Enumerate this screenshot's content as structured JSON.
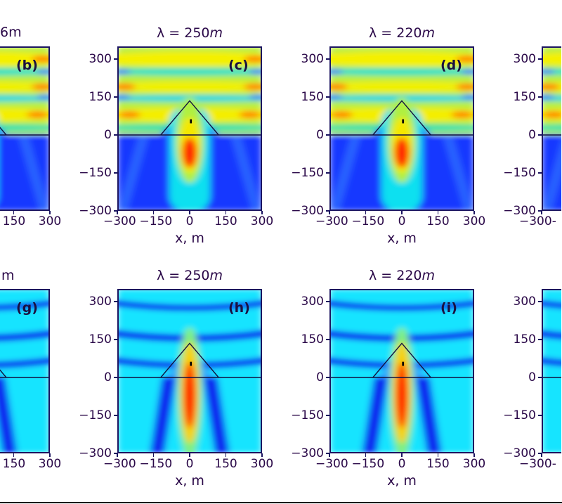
{
  "figure": {
    "title_fragments": [
      {
        "panel": "b",
        "text": "6m"
      },
      {
        "panel": "g",
        "text": "m"
      }
    ],
    "colors": {
      "text": "#2a0848",
      "frame": "#1b1460",
      "deep_blue": "#1838ff",
      "cyan": "#10e8ff",
      "yellow": "#f2f000",
      "red": "#ff1a00"
    }
  },
  "chart_data": [
    {
      "type": "heatmap",
      "panel": "b",
      "row": 0,
      "col": 0,
      "label": "(b)",
      "title": "",
      "xlabel": "",
      "xticks": [
        {
          "v": 150,
          "t": "150"
        },
        {
          "v": 300,
          "t": "300"
        }
      ],
      "yticks": [],
      "xlim": [
        -300,
        300
      ],
      "ylim": [
        -300,
        350
      ],
      "field": "top"
    },
    {
      "type": "heatmap",
      "panel": "c",
      "row": 0,
      "col": 1,
      "label": "(c)",
      "title": "λ = 250",
      "title_unit": "m",
      "xlabel": "x, m",
      "xticks": [
        {
          "v": -300,
          "t": "−300"
        },
        {
          "v": -150,
          "t": "−150"
        },
        {
          "v": 0,
          "t": "0"
        },
        {
          "v": 150,
          "t": "150"
        },
        {
          "v": 300,
          "t": "300"
        }
      ],
      "yticks": [
        {
          "v": 300,
          "t": "300"
        },
        {
          "v": 150,
          "t": "150"
        },
        {
          "v": 0,
          "t": "0"
        },
        {
          "v": -150,
          "t": "−150"
        },
        {
          "v": -300,
          "t": "−300"
        }
      ],
      "xlim": [
        -300,
        300
      ],
      "ylim": [
        -300,
        350
      ],
      "field": "top"
    },
    {
      "type": "heatmap",
      "panel": "d",
      "row": 0,
      "col": 2,
      "label": "(d)",
      "title": "λ = 220",
      "title_unit": "m",
      "xlabel": "x, m",
      "xticks": [
        {
          "v": -300,
          "t": "−300"
        },
        {
          "v": -150,
          "t": "−150"
        },
        {
          "v": 0,
          "t": "0"
        },
        {
          "v": 150,
          "t": "150"
        },
        {
          "v": 300,
          "t": "300"
        }
      ],
      "yticks": [
        {
          "v": 300,
          "t": "300"
        },
        {
          "v": 150,
          "t": "150"
        },
        {
          "v": 0,
          "t": "0"
        },
        {
          "v": -150,
          "t": "−150"
        },
        {
          "v": -300,
          "t": "−300"
        }
      ],
      "xlim": [
        -300,
        300
      ],
      "ylim": [
        -300,
        350
      ],
      "field": "top"
    },
    {
      "type": "heatmap",
      "panel": "e",
      "row": 0,
      "col": 3,
      "label": "",
      "title": "",
      "xlabel": "",
      "xticks": [
        {
          "v": -300,
          "t": "−300-"
        }
      ],
      "yticks": [
        {
          "v": 300,
          "t": "300"
        },
        {
          "v": 150,
          "t": "150"
        },
        {
          "v": 0,
          "t": "0"
        },
        {
          "v": -150,
          "t": "−150"
        },
        {
          "v": -300,
          "t": "−300"
        }
      ],
      "xlim": [
        -300,
        300
      ],
      "ylim": [
        -300,
        350
      ],
      "field": "top"
    },
    {
      "type": "heatmap",
      "panel": "g",
      "row": 1,
      "col": 0,
      "label": "(g)",
      "title": "",
      "xlabel": "",
      "xticks": [
        {
          "v": 150,
          "t": "150"
        },
        {
          "v": 300,
          "t": "300"
        }
      ],
      "yticks": [],
      "xlim": [
        -300,
        300
      ],
      "ylim": [
        -300,
        350
      ],
      "field": "bottom"
    },
    {
      "type": "heatmap",
      "panel": "h",
      "row": 1,
      "col": 1,
      "label": "(h)",
      "title": "λ = 250",
      "title_unit": "m",
      "xlabel": "x, m",
      "xticks": [
        {
          "v": -300,
          "t": "−300"
        },
        {
          "v": -150,
          "t": "−150"
        },
        {
          "v": 0,
          "t": "0"
        },
        {
          "v": 150,
          "t": "150"
        },
        {
          "v": 300,
          "t": "300"
        }
      ],
      "yticks": [
        {
          "v": 300,
          "t": "300"
        },
        {
          "v": 150,
          "t": "150"
        },
        {
          "v": 0,
          "t": "0"
        },
        {
          "v": -150,
          "t": "−150"
        },
        {
          "v": -300,
          "t": "−300"
        }
      ],
      "xlim": [
        -300,
        300
      ],
      "ylim": [
        -300,
        350
      ],
      "field": "bottom"
    },
    {
      "type": "heatmap",
      "panel": "i",
      "row": 1,
      "col": 2,
      "label": "(i)",
      "title": "λ = 220",
      "title_unit": "m",
      "xlabel": "x, m",
      "xticks": [
        {
          "v": -300,
          "t": "−300"
        },
        {
          "v": -150,
          "t": "−150"
        },
        {
          "v": 0,
          "t": "0"
        },
        {
          "v": 150,
          "t": "150"
        },
        {
          "v": 300,
          "t": "300"
        }
      ],
      "yticks": [
        {
          "v": 300,
          "t": "300"
        },
        {
          "v": 150,
          "t": "150"
        },
        {
          "v": 0,
          "t": "0"
        },
        {
          "v": -150,
          "t": "−150"
        },
        {
          "v": -300,
          "t": "−300"
        }
      ],
      "xlim": [
        -300,
        300
      ],
      "ylim": [
        -300,
        350
      ],
      "field": "bottom"
    },
    {
      "type": "heatmap",
      "panel": "j",
      "row": 1,
      "col": 3,
      "label": "",
      "title": "",
      "xlabel": "",
      "xticks": [
        {
          "v": -300,
          "t": "−300-"
        }
      ],
      "yticks": [
        {
          "v": 300,
          "t": "300"
        },
        {
          "v": 150,
          "t": "150"
        },
        {
          "v": 0,
          "t": "0"
        },
        {
          "v": -150,
          "t": "−150"
        },
        {
          "v": -300,
          "t": "−300"
        }
      ],
      "xlim": [
        -300,
        300
      ],
      "ylim": [
        -300,
        350
      ],
      "field": "bottom"
    }
  ]
}
